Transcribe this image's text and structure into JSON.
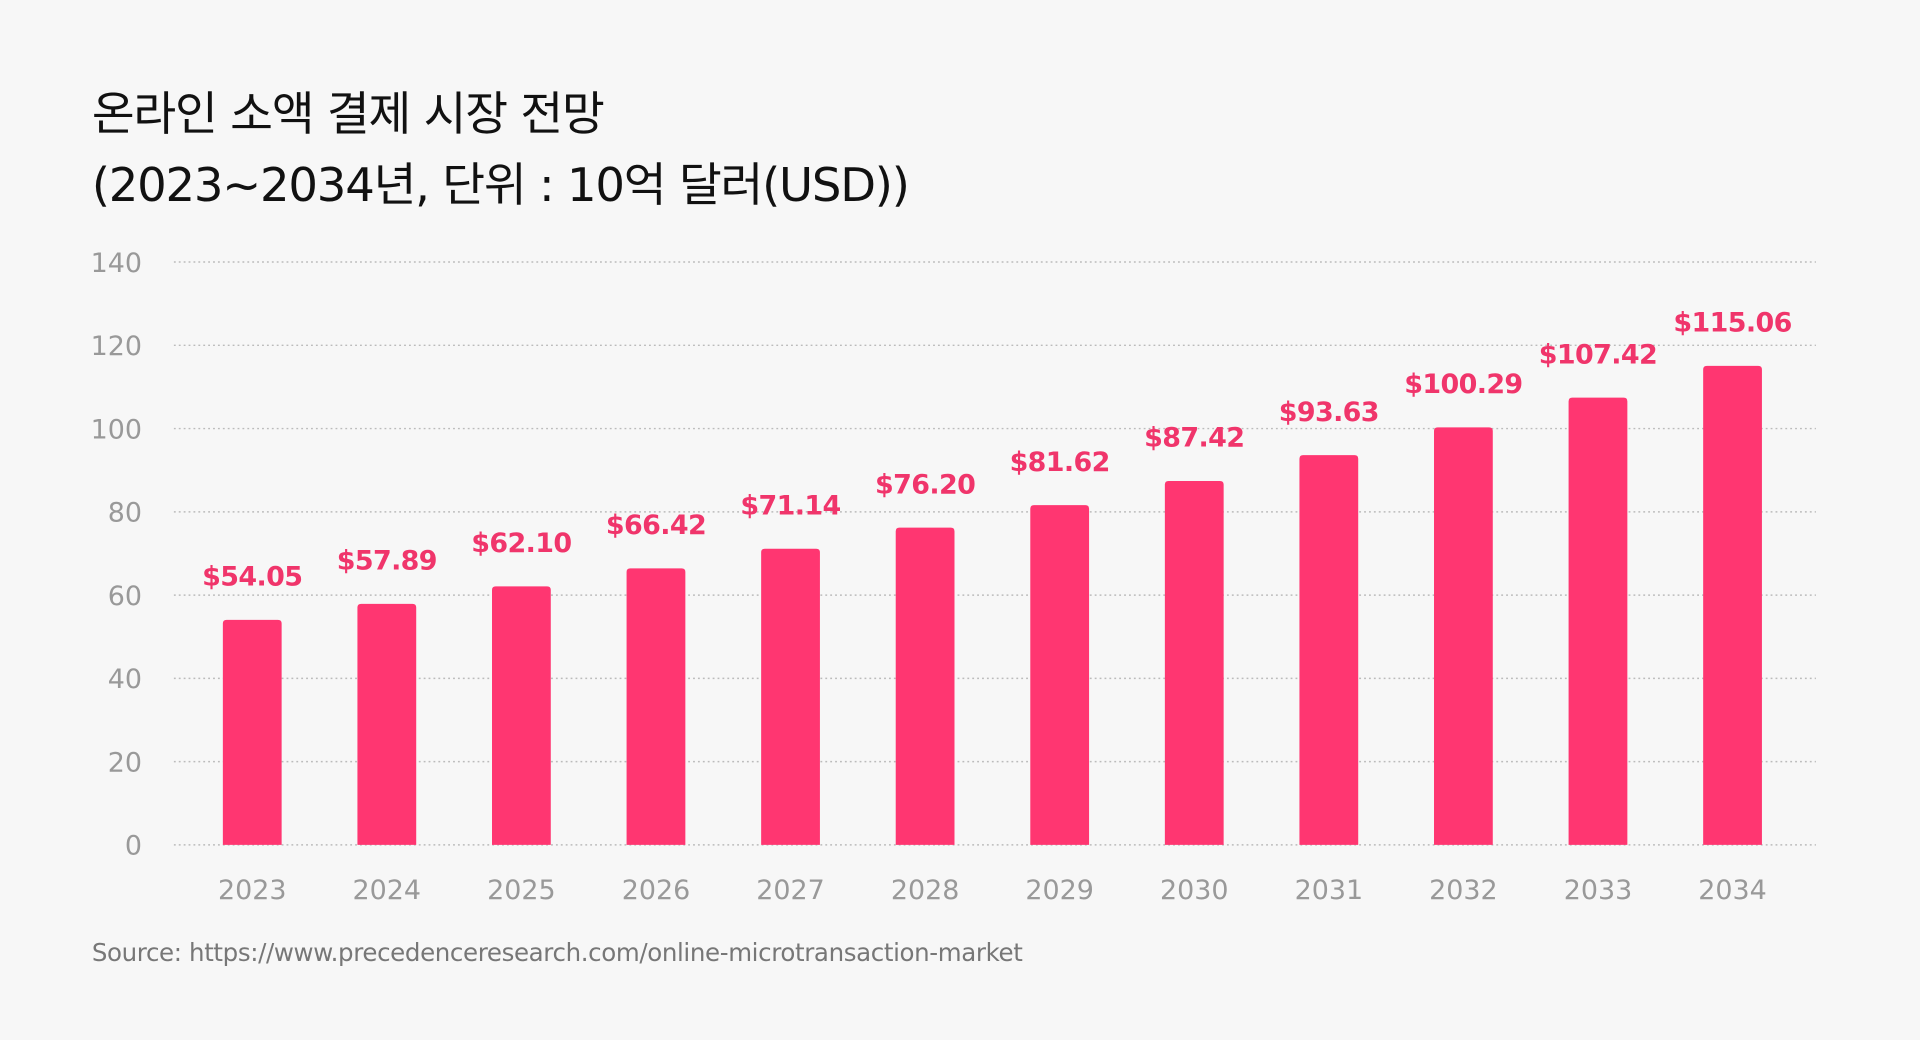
{
  "chart_data": {
    "type": "bar",
    "title": "온라인 소액 결제 시장 전망",
    "subtitle": "(2023~2034년, 단위 : 10억 달러(USD))",
    "categories": [
      "2023",
      "2024",
      "2025",
      "2026",
      "2027",
      "2028",
      "2029",
      "2030",
      "2031",
      "2032",
      "2033",
      "2034"
    ],
    "values": [
      54.05,
      57.89,
      62.1,
      66.42,
      71.14,
      76.2,
      81.62,
      87.42,
      93.63,
      100.29,
      107.42,
      115.06
    ],
    "data_labels": [
      "$54.05",
      "$57.89",
      "$62.10",
      "$66.42",
      "$71.14",
      "$76.20",
      "$81.62",
      "$87.42",
      "$93.63",
      "$100.29",
      "$107.42",
      "$115.06"
    ],
    "xlabel": "",
    "ylabel": "",
    "ylim": [
      0,
      140
    ],
    "yticks": [
      0,
      20,
      40,
      60,
      80,
      100,
      120,
      140
    ],
    "grid": true,
    "bar_color": "#ff3671",
    "label_color": "#f0356b"
  },
  "source": "Source: https://www.precedenceresearch.com/online-microtransaction-market"
}
